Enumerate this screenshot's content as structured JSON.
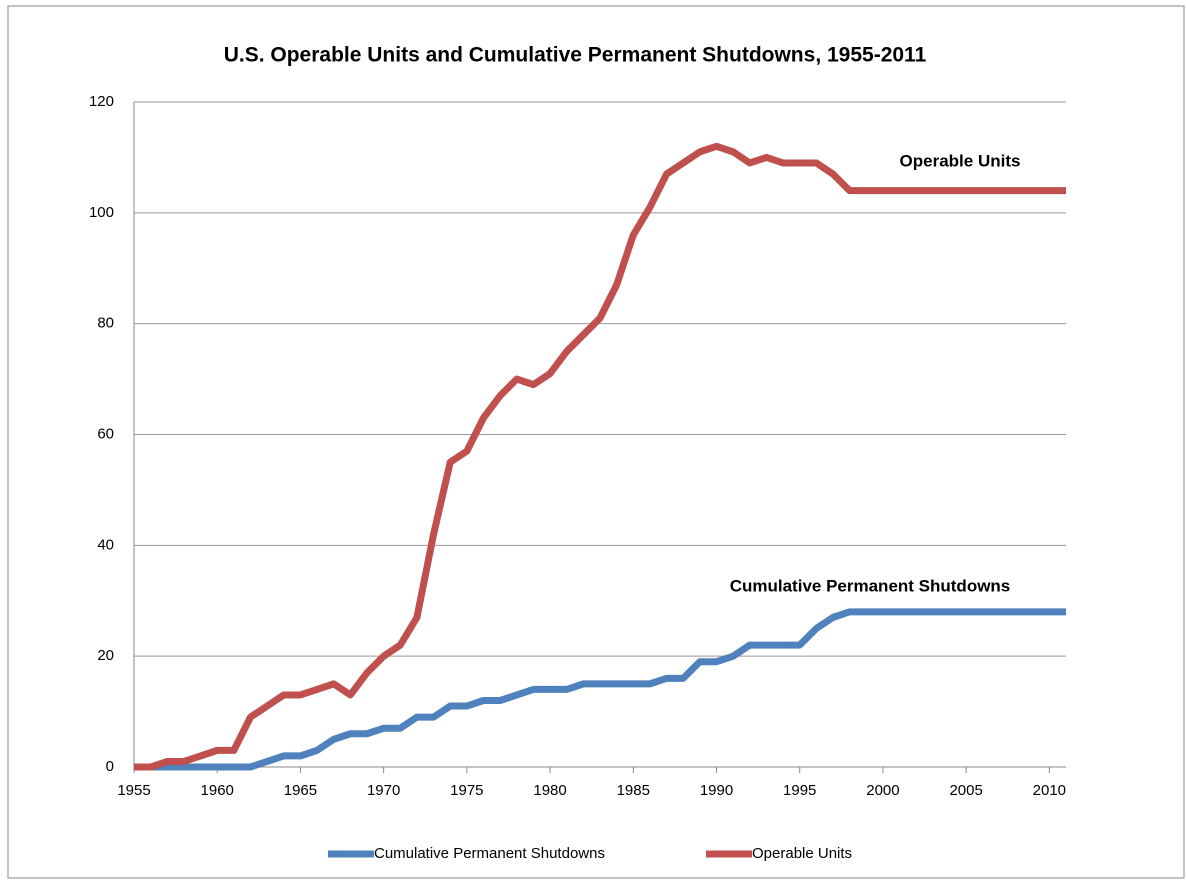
{
  "chart_data": {
    "type": "line",
    "title": "U.S. Operable Units  and Cumulative Permanent Shutdowns, 1955-2011",
    "x": [
      1955,
      1956,
      1957,
      1958,
      1959,
      1960,
      1961,
      1962,
      1963,
      1964,
      1965,
      1966,
      1967,
      1968,
      1969,
      1970,
      1971,
      1972,
      1973,
      1974,
      1975,
      1976,
      1977,
      1978,
      1979,
      1980,
      1981,
      1982,
      1983,
      1984,
      1985,
      1986,
      1987,
      1988,
      1989,
      1990,
      1991,
      1992,
      1993,
      1994,
      1995,
      1996,
      1997,
      1998,
      1999,
      2000,
      2001,
      2002,
      2003,
      2004,
      2005,
      2006,
      2007,
      2008,
      2009,
      2010,
      2011
    ],
    "series": [
      {
        "name": "Cumulative Permanent Shutdowns",
        "color": "#4f81bd",
        "values": [
          0,
          0,
          0,
          0,
          0,
          0,
          0,
          0,
          1,
          2,
          2,
          3,
          5,
          6,
          6,
          7,
          7,
          9,
          9,
          11,
          11,
          12,
          12,
          13,
          14,
          14,
          14,
          15,
          15,
          15,
          15,
          15,
          16,
          16,
          19,
          19,
          20,
          22,
          22,
          22,
          22,
          25,
          27,
          28,
          28,
          28,
          28,
          28,
          28,
          28,
          28,
          28,
          28,
          28,
          28,
          28,
          28
        ]
      },
      {
        "name": "Operable Units",
        "color": "#c0504d",
        "values": [
          0,
          0,
          1,
          1,
          2,
          3,
          3,
          9,
          11,
          13,
          13,
          14,
          15,
          13,
          17,
          20,
          22,
          27,
          42,
          55,
          57,
          63,
          67,
          70,
          69,
          71,
          75,
          78,
          81,
          87,
          96,
          101,
          107,
          109,
          111,
          112,
          111,
          109,
          110,
          109,
          109,
          109,
          107,
          104,
          104,
          104,
          104,
          104,
          104,
          104,
          104,
          104,
          104,
          104,
          104,
          104,
          104
        ]
      }
    ],
    "annotations": [
      "Operable Units",
      "Cumulative Permanent Shutdowns"
    ],
    "xlim": [
      1955,
      2011
    ],
    "xticks": [
      1955,
      1960,
      1965,
      1970,
      1975,
      1980,
      1985,
      1990,
      1995,
      2000,
      2005,
      2010
    ],
    "ylim": [
      0,
      120
    ],
    "yticks": [
      0,
      20,
      40,
      60,
      80,
      100,
      120
    ],
    "grid": true,
    "legend": "bottom"
  }
}
